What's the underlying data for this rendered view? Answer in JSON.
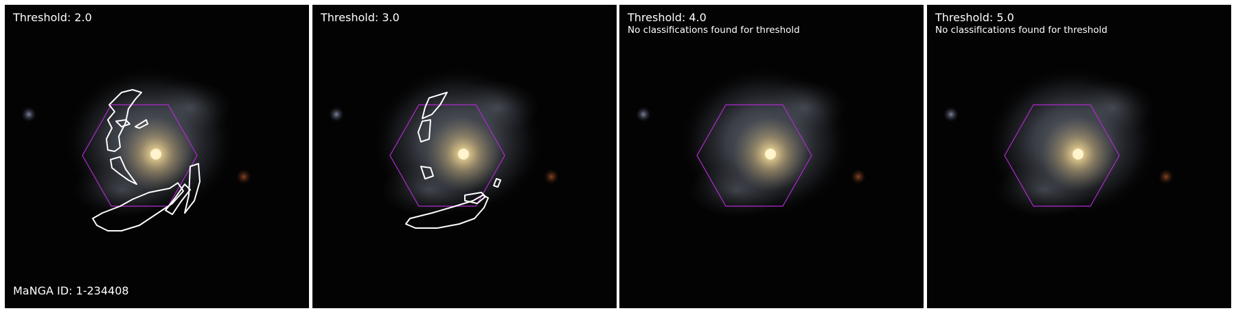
{
  "colors": {
    "background": "#030303",
    "hexagon": "#b22ad0",
    "contour": "#ffffff",
    "core": "#fff6c8",
    "bulge": "#b9a57a",
    "disk": "#5c6270"
  },
  "galaxy": {
    "manga_id_label": "MaNGA ID: 1-234408"
  },
  "panels": [
    {
      "title": "Threshold: 2.0",
      "message": ""
    },
    {
      "title": "Threshold: 3.0",
      "message": ""
    },
    {
      "title": "Threshold: 4.0",
      "message": "No classifications found for threshold"
    },
    {
      "title": "Threshold: 5.0",
      "message": "No classifications found for threshold"
    }
  ]
}
